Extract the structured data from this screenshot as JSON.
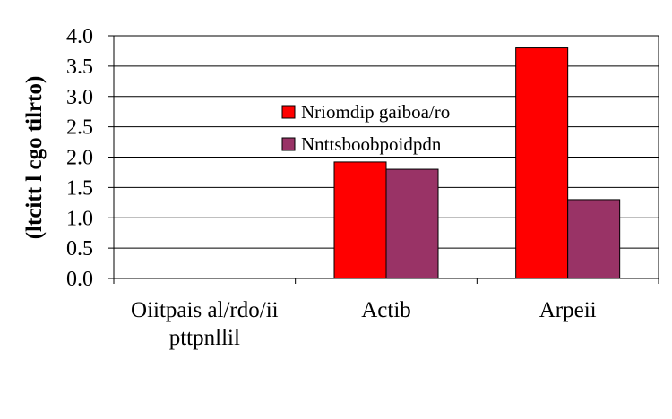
{
  "chart_data": {
    "type": "bar",
    "title": "",
    "xlabel": "",
    "ylabel": "(ltcitt l cgo tilrto)",
    "ylim": [
      0,
      4
    ],
    "ytick_step": 0.5,
    "ytick_labels": [
      "0.0",
      "0.5",
      "1.0",
      "1.5",
      "2.0",
      "2.5",
      "3.0",
      "3.5",
      "4.0"
    ],
    "grid": true,
    "legend_position": "center",
    "categories": [
      [
        "Oiitpais al/rdo/ii",
        "pttpnllil"
      ],
      [
        "Actib"
      ],
      [
        "Arpeii"
      ]
    ],
    "series": [
      {
        "name": "Nriomdip gaiboa/ro",
        "color": "#ff0000",
        "values": [
          0,
          1.92,
          3.8
        ]
      },
      {
        "name": "Nnttsboobpoidpdn",
        "color": "#993366",
        "values": [
          0,
          1.8,
          1.3
        ]
      }
    ]
  }
}
